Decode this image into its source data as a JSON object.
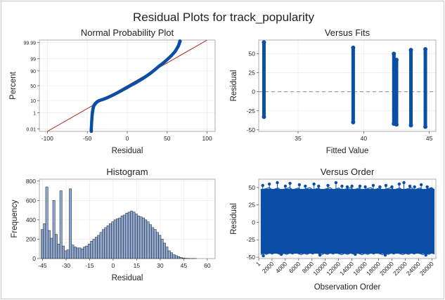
{
  "figure": {
    "title": "Residual Plots for track_popularity"
  },
  "colors": {
    "point": "#0a4ea6",
    "fit_line": "#b22222",
    "bar_fill": "#8fa8cf",
    "bar_edge": "#1a1a1a",
    "ref_line": "#888888",
    "grid": "#e6e6e6"
  },
  "chart_data": [
    {
      "type": "scatter",
      "title": "Normal Probability Plot",
      "xlabel": "Residual",
      "ylabel": "Percent",
      "xlim": [
        -110,
        110
      ],
      "xticks": [
        -100,
        -50,
        0,
        50,
        100
      ],
      "yticks": [
        0.01,
        1,
        10,
        50,
        90,
        99,
        99.99
      ],
      "yscale": "normal-probability",
      "fit_line": [
        [
          -100,
          0.004
        ],
        [
          100,
          99.996
        ]
      ],
      "points_description_x": [
        -45,
        -45,
        -44.5,
        -44,
        -43.5,
        -43,
        -42.5,
        -42,
        -41,
        -40,
        -38,
        -35,
        -30,
        -25,
        -20,
        -15,
        -10,
        -5,
        0,
        5,
        10,
        15,
        20,
        25,
        30,
        35,
        40,
        45,
        50,
        55,
        60,
        62,
        64,
        65,
        66
      ],
      "points_description_y": [
        0.004,
        0.01,
        0.1,
        0.5,
        1.2,
        2,
        3,
        4,
        5,
        6,
        8,
        10,
        12,
        15,
        19,
        24,
        30,
        37,
        44,
        52,
        59,
        67,
        74,
        81,
        87,
        92,
        95.5,
        97.5,
        98.8,
        99.5,
        99.85,
        99.93,
        99.97,
        99.985,
        99.994
      ]
    },
    {
      "type": "scatter",
      "title": "Versus Fits",
      "xlabel": "Fitted Value",
      "ylabel": "Residual",
      "xlim": [
        32,
        45.5
      ],
      "ylim": [
        -52,
        68
      ],
      "xticks": [
        35,
        40,
        45
      ],
      "yticks": [
        -50,
        -25,
        0,
        25,
        50
      ],
      "reference_line_y": 0,
      "columns": [
        {
          "x": 32.4,
          "ymin": -33,
          "ymax": 65
        },
        {
          "x": 39.2,
          "ymin": -40,
          "ymax": 58
        },
        {
          "x": 42.3,
          "ymin": -42,
          "ymax": 50
        },
        {
          "x": 42.5,
          "ymin": -43,
          "ymax": 42
        },
        {
          "x": 43.6,
          "ymin": -44,
          "ymax": 55
        },
        {
          "x": 44.7,
          "ymin": -46,
          "ymax": 56
        }
      ]
    },
    {
      "type": "bar",
      "title": "Histogram",
      "xlabel": "Residual",
      "ylabel": "Frequency",
      "xlim": [
        -47,
        65
      ],
      "ylim": [
        0,
        820
      ],
      "xticks": [
        -45,
        -30,
        -15,
        0,
        15,
        30,
        45,
        60
      ],
      "yticks": [
        0,
        200,
        400,
        600,
        800
      ],
      "bin_start": -46,
      "bin_width": 1.5,
      "values": [
        300,
        360,
        740,
        290,
        210,
        600,
        250,
        150,
        700,
        130,
        80,
        90,
        720,
        140,
        120,
        110,
        110,
        100,
        120,
        130,
        150,
        180,
        200,
        220,
        240,
        270,
        300,
        320,
        340,
        360,
        380,
        400,
        410,
        420,
        440,
        450,
        470,
        480,
        490,
        480,
        460,
        440,
        430,
        420,
        400,
        380,
        350,
        320,
        300,
        270,
        240,
        200,
        160,
        120,
        80,
        60,
        40,
        30,
        20,
        12,
        6,
        3,
        2,
        1,
        1,
        1
      ]
    },
    {
      "type": "scatter",
      "title": "Versus Order",
      "xlabel": "Observation Order",
      "ylabel": "Residual",
      "xlim": [
        0,
        26600
      ],
      "ylim": [
        -52,
        62
      ],
      "xticks": [
        1,
        2000,
        4000,
        6000,
        8000,
        10000,
        12000,
        14000,
        16000,
        18000,
        20000,
        22000,
        24000,
        26000
      ],
      "yticks": [
        -50,
        -25,
        0,
        25,
        50
      ],
      "band": {
        "ymin": -45,
        "ymax": 48
      },
      "spikes": [
        [
          600,
          53
        ],
        [
          1600,
          55
        ],
        [
          2800,
          57
        ],
        [
          4000,
          52
        ],
        [
          4700,
          56
        ],
        [
          6100,
          54
        ],
        [
          7000,
          52
        ],
        [
          8300,
          55
        ],
        [
          9000,
          52
        ],
        [
          10400,
          53
        ],
        [
          11600,
          57
        ],
        [
          12500,
          52
        ],
        [
          13300,
          51
        ],
        [
          14000,
          52
        ],
        [
          15200,
          52
        ],
        [
          16000,
          51
        ],
        [
          17200,
          53
        ],
        [
          18200,
          51
        ],
        [
          19100,
          53
        ],
        [
          20000,
          51
        ],
        [
          21100,
          55
        ],
        [
          21800,
          57
        ],
        [
          22700,
          52
        ],
        [
          23400,
          51
        ],
        [
          24400,
          54
        ],
        [
          25300,
          51
        ],
        [
          25900,
          48
        ]
      ],
      "low_spikes": [
        [
          700,
          -48
        ],
        [
          3400,
          -46
        ],
        [
          9200,
          -47
        ],
        [
          14500,
          -46
        ],
        [
          19000,
          -47
        ],
        [
          25100,
          -47
        ]
      ]
    }
  ]
}
